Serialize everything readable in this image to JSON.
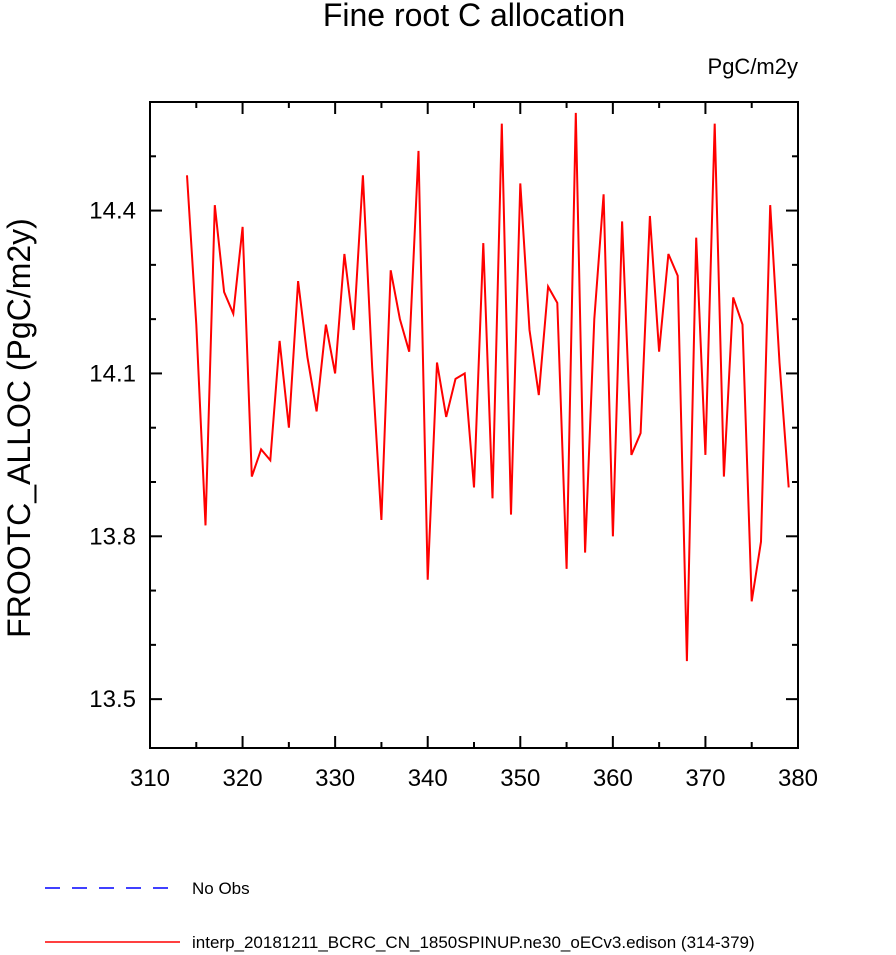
{
  "chart_data": {
    "type": "line",
    "title": "Fine root C allocation",
    "units_label": "PgC/m2y",
    "xlabel": "",
    "ylabel": "FROOTC_ALLOC  (PgC/m2y)",
    "xlim": [
      310,
      380
    ],
    "ylim": [
      13.41,
      14.6
    ],
    "x_ticks": [
      310,
      320,
      330,
      340,
      350,
      360,
      370,
      380
    ],
    "x_minor_step": 5,
    "y_ticks": [
      13.5,
      13.8,
      14.1,
      14.4
    ],
    "y_minor_step": 0.1,
    "grid": false,
    "legend_position": "bottom-left",
    "series": [
      {
        "name": "No Obs",
        "color": "#0000ff",
        "dash": "dashed",
        "x": [],
        "y": []
      },
      {
        "name": "interp_20181211_BCRC_CN_1850SPINUP.ne30_oECv3.edison (314-379)",
        "color": "#ff0000",
        "dash": "solid",
        "x": [
          314,
          315,
          316,
          317,
          318,
          319,
          320,
          321,
          322,
          323,
          324,
          325,
          326,
          327,
          328,
          329,
          330,
          331,
          332,
          333,
          334,
          335,
          336,
          337,
          338,
          339,
          340,
          341,
          342,
          343,
          344,
          345,
          346,
          347,
          348,
          349,
          350,
          351,
          352,
          353,
          354,
          355,
          356,
          357,
          358,
          359,
          360,
          361,
          362,
          363,
          364,
          365,
          366,
          367,
          368,
          369,
          370,
          371,
          372,
          373,
          374,
          375,
          376,
          377,
          378,
          379
        ],
        "y": [
          14.465,
          14.19,
          13.82,
          14.41,
          14.25,
          14.21,
          14.37,
          13.91,
          13.96,
          13.94,
          14.16,
          14.0,
          14.27,
          14.13,
          14.03,
          14.19,
          14.1,
          14.32,
          14.18,
          14.465,
          14.11,
          13.83,
          14.29,
          14.2,
          14.14,
          14.51,
          13.72,
          14.12,
          14.02,
          14.09,
          14.1,
          13.89,
          14.34,
          13.87,
          14.56,
          13.84,
          14.45,
          14.18,
          14.06,
          14.26,
          14.23,
          13.74,
          14.58,
          13.77,
          14.2,
          14.43,
          13.8,
          14.38,
          13.95,
          13.99,
          14.39,
          14.14,
          14.32,
          14.28,
          13.57,
          14.35,
          13.95,
          14.56,
          13.91,
          14.24,
          14.19,
          13.68,
          13.79,
          14.41,
          14.12,
          13.89
        ]
      }
    ]
  }
}
